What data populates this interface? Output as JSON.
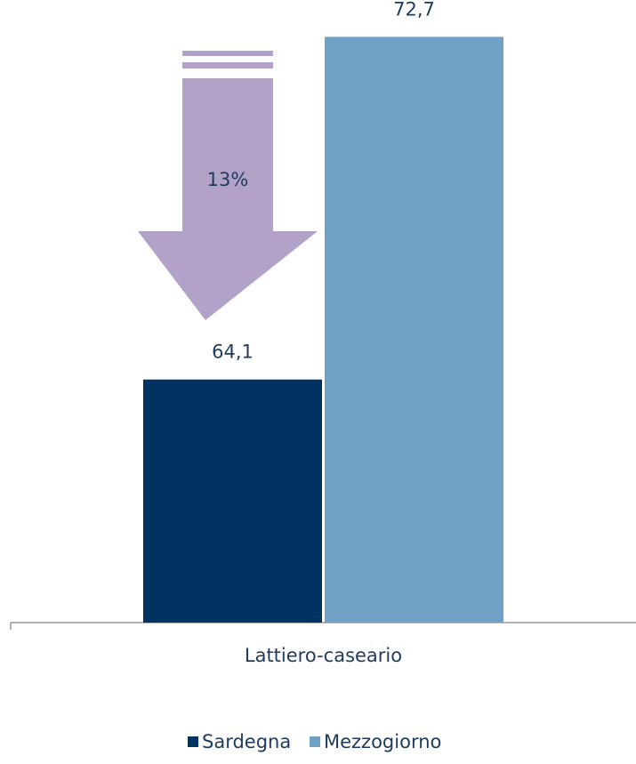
{
  "chart_data": {
    "type": "bar",
    "categories": [
      "Lattiero-caseario"
    ],
    "series": [
      {
        "name": "Sardegna",
        "color": "#003262",
        "values": [
          64.1
        ],
        "value_labels": [
          "64,1"
        ]
      },
      {
        "name": "Mezzogiorno",
        "color": "#6fa0c6",
        "values": [
          72.7
        ],
        "value_labels": [
          "72,7"
        ]
      }
    ],
    "ylim": [
      58,
      73
    ],
    "annotation": "13%",
    "legend": "bottom"
  }
}
